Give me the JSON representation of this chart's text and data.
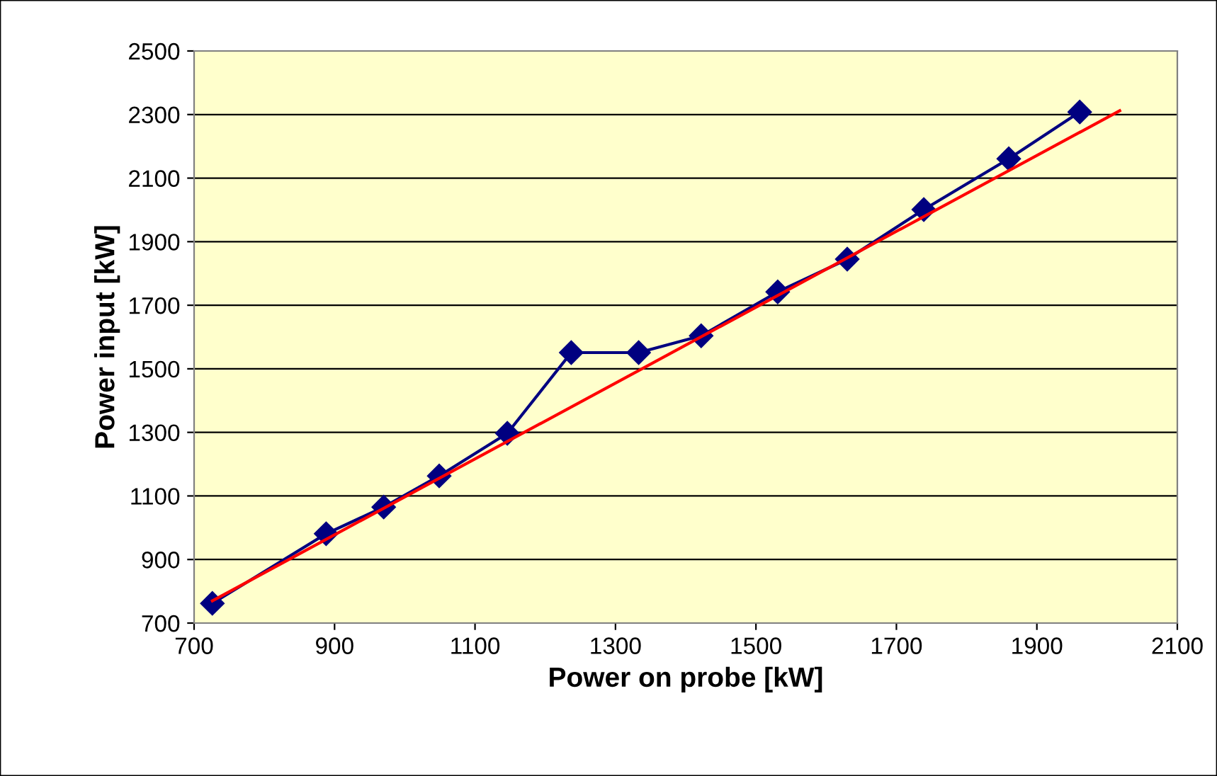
{
  "chart_data": {
    "type": "line",
    "xlabel": "Power on probe [kW]",
    "ylabel": "Power input [kW]",
    "x": [
      726,
      888,
      970,
      1049,
      1146,
      1237,
      1333,
      1422,
      1531,
      1630,
      1739,
      1860,
      1961
    ],
    "series": [
      {
        "color": "#000080",
        "marker": "diamond",
        "values": [
          762,
          981,
          1065,
          1163,
          1297,
          1551,
          1551,
          1604,
          1742,
          1845,
          2001,
          2161,
          2308
        ]
      },
      {
        "color": "#ff0000",
        "marker": "none",
        "x": [
          726,
          2018
        ],
        "values": [
          770,
          2312
        ]
      }
    ],
    "xlim": [
      700,
      2100
    ],
    "xticks": [
      700,
      900,
      1100,
      1300,
      1500,
      1700,
      1900,
      2100
    ],
    "ylim": [
      700,
      2500
    ],
    "yticks": [
      700,
      900,
      1100,
      1300,
      1500,
      1700,
      1900,
      2100,
      2300,
      2500
    ],
    "grid": "y",
    "legend": false
  }
}
